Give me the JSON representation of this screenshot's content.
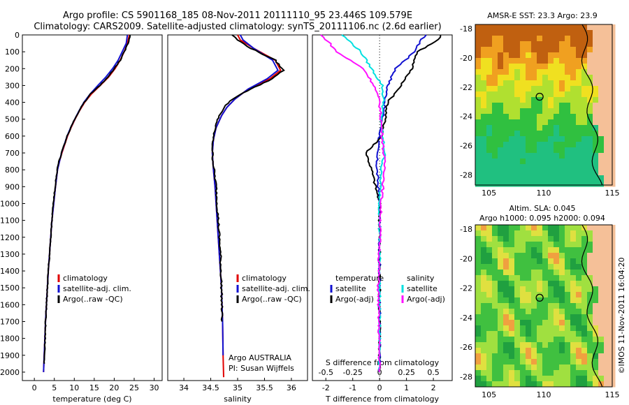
{
  "header": {
    "line1": "Argo profile: CS 5901168_185 08-Nov-2011 20111110_95 23.446S 109.579E",
    "line2": "Climatology: CARS2009. Satellite-adjusted climatology: synTS_20111106.nc (2.6d earlier)"
  },
  "colors": {
    "climatology": "#e00000",
    "satellite": "#1010d0",
    "argo": "#000000",
    "sal_sat": "#00e0e0",
    "sal_argo": "#ff10ff",
    "land": "#f5c098"
  },
  "chart_data": [
    {
      "type": "line",
      "xlabel": "temperature (deg C)",
      "ylabel": "",
      "xlim": [
        -3,
        32
      ],
      "ylim": [
        2050,
        0
      ],
      "xticks": [
        "0",
        "5",
        "10",
        "15",
        "20",
        "25",
        "30"
      ],
      "yticks": [
        "0",
        "100",
        "200",
        "300",
        "400",
        "500",
        "600",
        "700",
        "800",
        "900",
        "1000",
        "1100",
        "1200",
        "1300",
        "1400",
        "1500",
        "1600",
        "1700",
        "1800",
        "1900",
        "2000"
      ],
      "legend": [
        "climatology",
        "satellite-adj. clim.",
        "Argo(..raw -QC)"
      ],
      "series": [
        {
          "name": "climatology",
          "x": [
            23.8,
            23.3,
            22.5,
            21.5,
            20.2,
            18.6,
            16.5,
            14.3,
            12.6,
            11.3,
            10.2,
            9.2,
            8.3,
            7.6,
            6.9,
            6.3,
            5.8,
            5.3,
            4.4,
            3.5,
            2.8,
            2.3
          ],
          "y": [
            0,
            50,
            100,
            150,
            200,
            250,
            300,
            350,
            400,
            450,
            500,
            550,
            600,
            650,
            700,
            750,
            800,
            900,
            1100,
            1400,
            1700,
            2000
          ]
        },
        {
          "name": "satellite-adj. clim.",
          "x": [
            23.3,
            23.0,
            22.0,
            21.0,
            19.6,
            17.9,
            15.9,
            14.0,
            12.4,
            11.2,
            10.1,
            9.1,
            8.2,
            7.5,
            6.8,
            6.3,
            5.8,
            5.3,
            4.4,
            3.5,
            2.8,
            2.3
          ],
          "y": [
            0,
            50,
            100,
            150,
            200,
            250,
            300,
            350,
            400,
            450,
            500,
            550,
            600,
            650,
            700,
            750,
            800,
            900,
            1100,
            1400,
            1700,
            2000
          ]
        },
        {
          "name": "Argo(..raw -QC)",
          "x": [
            24.0,
            23.5,
            22.5,
            21.5,
            20.0,
            18.5,
            16.4,
            14.1,
            12.5,
            11.2,
            10.1,
            9.1,
            8.2,
            7.5,
            6.8,
            6.2,
            5.7,
            5.2,
            4.4,
            3.5,
            2.8,
            2.5
          ],
          "y": [
            0,
            50,
            100,
            150,
            200,
            250,
            300,
            350,
            400,
            450,
            500,
            550,
            600,
            650,
            700,
            750,
            800,
            900,
            1100,
            1400,
            1700,
            1950
          ]
        }
      ]
    },
    {
      "type": "line",
      "xlabel": "salinity",
      "ylabel": "",
      "xlim": [
        33.7,
        36.3
      ],
      "ylim": [
        2050,
        0
      ],
      "xticks": [
        "34",
        "34.5",
        "35",
        "35.5",
        "36"
      ],
      "legend": [
        "climatology",
        "satellite-adj. clim.",
        "Argo(..raw -QC)"
      ],
      "annotation": [
        "Argo AUSTRALIA",
        "PI: Susan Wijffels"
      ],
      "series": [
        {
          "name": "climatology",
          "x": [
            35.0,
            35.05,
            35.3,
            35.7,
            35.8,
            35.6,
            35.2,
            34.95,
            34.8,
            34.7,
            34.6,
            34.55,
            34.53,
            34.55,
            34.58,
            34.6,
            34.63,
            34.66,
            34.7,
            34.72,
            34.73,
            34.74
          ],
          "y": [
            0,
            30,
            80,
            150,
            210,
            260,
            320,
            380,
            430,
            480,
            550,
            620,
            700,
            800,
            900,
            1000,
            1150,
            1300,
            1500,
            1700,
            1900,
            2030
          ]
        },
        {
          "name": "satellite-adj. clim.",
          "x": [
            35.05,
            35.1,
            35.3,
            35.65,
            35.75,
            35.55,
            35.2,
            34.95,
            34.8,
            34.7,
            34.6,
            34.55,
            34.53,
            34.55,
            34.58,
            34.6,
            34.63,
            34.66,
            34.7,
            34.72,
            34.73
          ],
          "y": [
            0,
            30,
            80,
            150,
            210,
            260,
            320,
            380,
            430,
            480,
            550,
            620,
            700,
            800,
            900,
            1000,
            1150,
            1300,
            1500,
            1700,
            1900
          ]
        },
        {
          "name": "Argo(..raw -QC)",
          "x": [
            34.9,
            35.0,
            35.25,
            35.7,
            35.85,
            35.65,
            35.25,
            34.9,
            34.75,
            34.65,
            34.58,
            34.54,
            34.53,
            34.56,
            34.6,
            34.62,
            34.65,
            34.68,
            34.7,
            34.71
          ],
          "y": [
            0,
            30,
            80,
            150,
            210,
            260,
            320,
            380,
            430,
            480,
            550,
            620,
            700,
            800,
            900,
            1000,
            1150,
            1300,
            1500,
            1700
          ]
        }
      ]
    },
    {
      "type": "line",
      "xlabel": "T difference from climatology",
      "xlabel_top": "S difference from climatology",
      "xlim": [
        -2.5,
        2.7
      ],
      "ylim": [
        2050,
        0
      ],
      "xticks": [
        "-2",
        "-1",
        "0",
        "1",
        "2"
      ],
      "xticks_top": [
        "-0.5",
        "-0.25",
        "0",
        "0.25",
        "0.5"
      ],
      "legend_temperature": [
        "temperature",
        "satellite",
        "Argo(-adj)"
      ],
      "legend_salinity": [
        "salinity",
        "satellite",
        "Argo(-adj)"
      ],
      "series": [
        {
          "name": "satellite",
          "x": [
            1.7,
            1.5,
            1.3,
            0.6,
            0.3,
            0.2,
            0.1,
            0,
            -0.1,
            -0.1,
            0,
            0,
            0
          ],
          "y": [
            0,
            40,
            100,
            200,
            300,
            400,
            500,
            600,
            700,
            800,
            1000,
            1500,
            2000
          ]
        },
        {
          "name": "Argo(-adj)",
          "x": [
            2.3,
            2.1,
            1.4,
            1.2,
            0.8,
            0.3,
            0.2,
            0.1,
            -0.5,
            -0.3,
            0,
            0,
            0
          ],
          "y": [
            0,
            40,
            100,
            200,
            300,
            400,
            500,
            600,
            700,
            800,
            1000,
            1500,
            2000
          ]
        },
        {
          "name": "satellite",
          "x": [
            -1.4,
            -1.1,
            -0.7,
            -0.3,
            0.1,
            0.15,
            0.05,
            0.1,
            0.2,
            0.05,
            0,
            0,
            0
          ],
          "y": [
            0,
            40,
            100,
            200,
            300,
            400,
            500,
            600,
            700,
            800,
            1000,
            1500,
            2000
          ]
        },
        {
          "name": "Argo(-adj)",
          "x": [
            -2.2,
            -1.9,
            -1.6,
            -0.6,
            -0.2,
            0,
            0.05,
            0.1,
            0.15,
            0.2,
            0.05,
            -0.05,
            0
          ],
          "y": [
            0,
            40,
            100,
            200,
            300,
            400,
            500,
            600,
            700,
            800,
            1000,
            1500,
            2000
          ]
        }
      ]
    }
  ],
  "maps": [
    {
      "title": "AMSR-E SST: 23.3 Argo: 23.9",
      "xticks": [
        "105",
        "110",
        "115"
      ],
      "yticks": [
        "-18",
        "-20",
        "-22",
        "-24",
        "-26",
        "-28"
      ]
    },
    {
      "title1": "Altim. SLA: 0.045",
      "title2": "Argo h1000: 0.095 h2000: 0.094",
      "xticks": [
        "105",
        "110",
        "115"
      ],
      "yticks": [
        "-18",
        "-20",
        "-22",
        "-24",
        "-26",
        "-28"
      ]
    }
  ],
  "footer": {
    "stamp": "©IMOS 11-Nov-2011 16:04:20"
  }
}
